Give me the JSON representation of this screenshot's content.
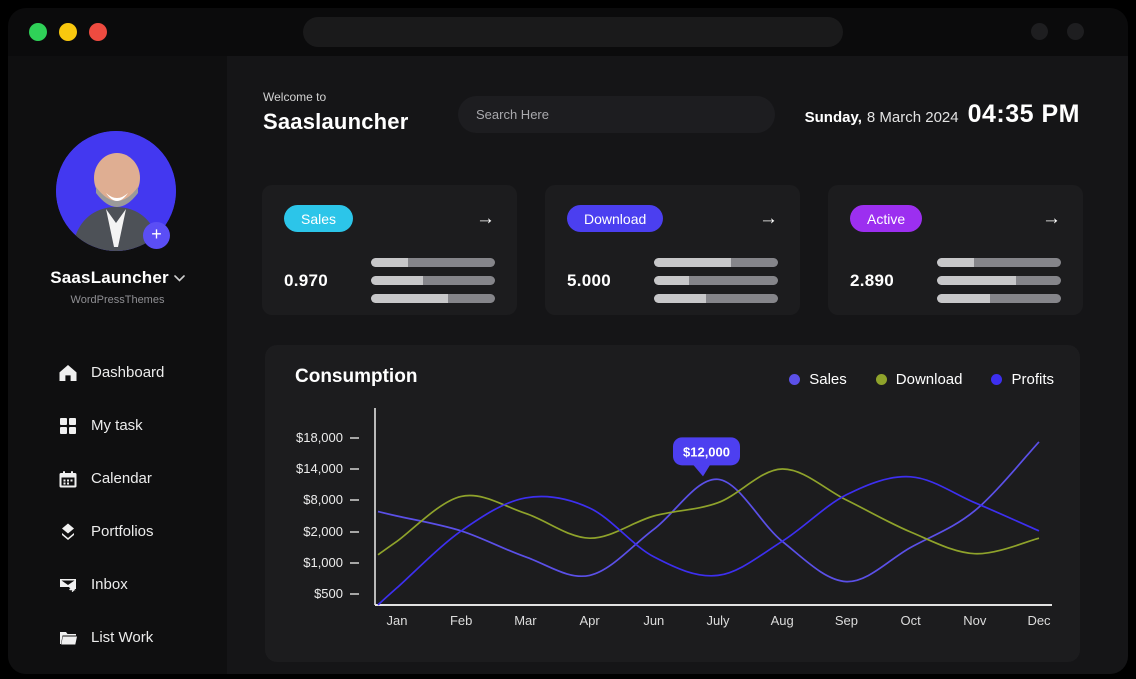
{
  "window": {
    "traffic_lights": [
      {
        "name": "green",
        "color": "#2fd158"
      },
      {
        "name": "yellow",
        "color": "#f9c80e"
      },
      {
        "name": "red",
        "color": "#ee4b40"
      }
    ]
  },
  "sidebar": {
    "profile": {
      "name": "SaasLauncher",
      "subtitle": "WordPressThemes"
    },
    "avatar_bg": "#4338f0",
    "plus_label": "+",
    "items": [
      {
        "id": "dashboard",
        "label": "Dashboard",
        "icon": "home-icon"
      },
      {
        "id": "my-task",
        "label": "My task",
        "icon": "grid-icon"
      },
      {
        "id": "calendar",
        "label": "Calendar",
        "icon": "calendar-icon"
      },
      {
        "id": "portfolios",
        "label": "Portfolios",
        "icon": "layers-icon"
      },
      {
        "id": "inbox",
        "label": "Inbox",
        "icon": "mail-icon"
      },
      {
        "id": "list-work",
        "label": "List Work",
        "icon": "folder-icon"
      }
    ]
  },
  "header": {
    "welcome": "Welcome to",
    "app_name": "Saaslauncher",
    "search_placeholder": "Search Here",
    "date_day": "Sunday,",
    "date_rest": "8 March 2024",
    "time": "04:35 PM"
  },
  "stats": [
    {
      "label": "Sales",
      "badge_color": "#2cc5e9",
      "value": "0.970",
      "bars": [
        30,
        42,
        62
      ]
    },
    {
      "label": "Download",
      "badge_color": "#4b3ff0",
      "value": "5.000",
      "bars": [
        62,
        28,
        42
      ]
    },
    {
      "label": "Active",
      "badge_color": "#9c2ff0",
      "value": "2.890",
      "bars": [
        30,
        64,
        43
      ]
    }
  ],
  "chart_data": {
    "type": "line",
    "title": "Consumption",
    "x": [
      "Jan",
      "Feb",
      "Mar",
      "Apr",
      "Jun",
      "July",
      "Aug",
      "Sep",
      "Oct",
      "Nov",
      "Dec"
    ],
    "series": [
      {
        "name": "Sales",
        "color": "#5b50e8",
        "values": [
          5000,
          2200,
          1200,
          800,
          2500,
          12000,
          1700,
          700,
          1500,
          6000,
          18500
        ]
      },
      {
        "name": "Download",
        "color": "#8fa32b",
        "values": [
          1700,
          8700,
          5500,
          1800,
          5000,
          7500,
          14000,
          8000,
          2000,
          1300,
          1800
        ]
      },
      {
        "name": "Profits",
        "color": "#3d2ff0",
        "values": [
          600,
          2200,
          8400,
          6500,
          1200,
          800,
          1700,
          9000,
          12500,
          7500,
          2200
        ]
      }
    ],
    "y_ticks": [
      {
        "label": "$18,000",
        "value": 18000
      },
      {
        "label": "$14,000",
        "value": 14000
      },
      {
        "label": "$8,000",
        "value": 8000
      },
      {
        "label": "$2,000",
        "value": 2000
      },
      {
        "label": "$1,000",
        "value": 1000
      },
      {
        "label": "$500",
        "value": 500
      }
    ],
    "xlabel": "",
    "ylabel": "",
    "grid": false,
    "legend_position": "top-right",
    "tooltip": {
      "text": "$12,000",
      "series": "Sales",
      "month": "July",
      "value": 12000,
      "bg": "#4d3ff0"
    }
  }
}
